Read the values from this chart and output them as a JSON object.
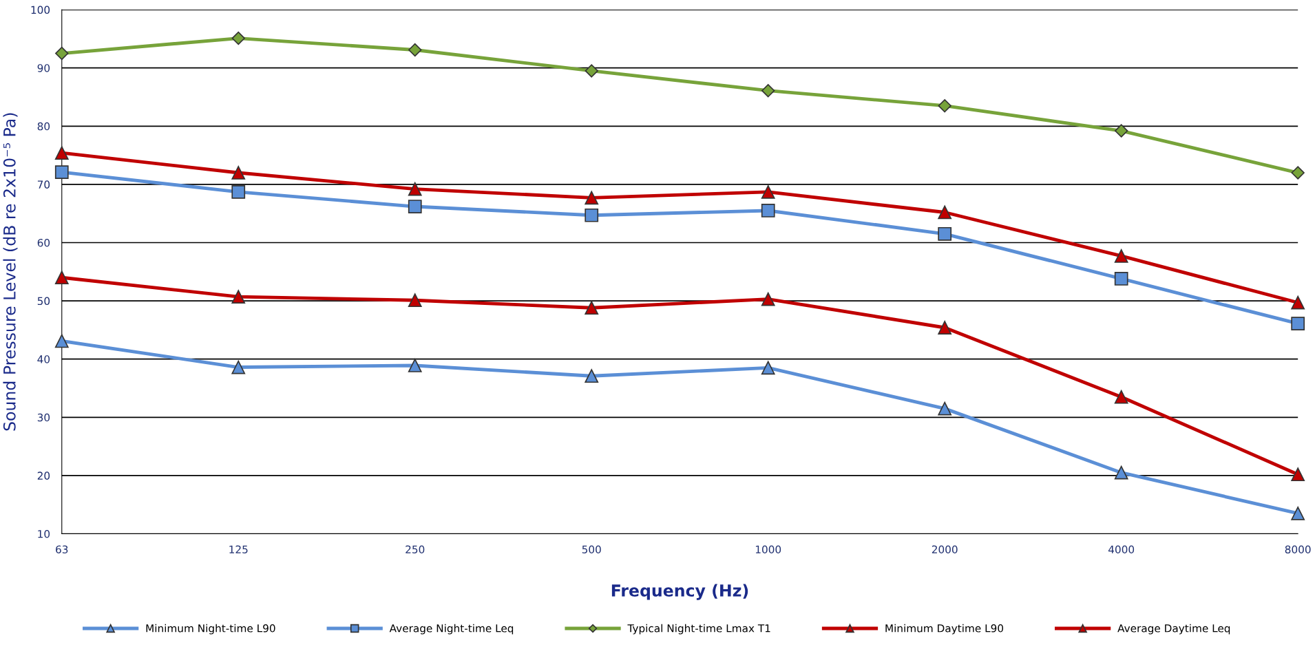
{
  "chart_data": {
    "type": "line",
    "xlabel": "Frequency (Hz)",
    "ylabel": "Sound Pressure Level (dB re 2x10⁻⁵ Pa)",
    "categories": [
      "63",
      "125",
      "250",
      "500",
      "1000",
      "2000",
      "4000",
      "8000"
    ],
    "ylim": [
      10,
      100
    ],
    "yticks": [
      10,
      20,
      30,
      40,
      50,
      60,
      70,
      80,
      90,
      100
    ],
    "grid": "y",
    "legend": "bottom",
    "line_style": "solid",
    "series": [
      {
        "name": "Minimum Night-time L90",
        "color": "#5b8fd6",
        "marker": "triangle",
        "values": [
          43.1,
          38.6,
          38.9,
          37.1,
          38.5,
          31.5,
          20.5,
          13.5
        ]
      },
      {
        "name": "Average Night-time Leq",
        "color": "#5b8fd6",
        "marker": "square",
        "values": [
          72.1,
          68.7,
          66.2,
          64.7,
          65.5,
          61.5,
          53.8,
          46.1
        ]
      },
      {
        "name": "Typical Night-time Lmax T1",
        "color": "#77a33a",
        "marker": "diamond",
        "values": [
          92.5,
          95.1,
          93.1,
          89.5,
          86.1,
          83.5,
          79.2,
          72.0
        ]
      },
      {
        "name": "Minimum Daytime L90",
        "color": "#c00000",
        "marker": "triangle",
        "values": [
          54.0,
          50.7,
          50.1,
          48.8,
          50.3,
          45.4,
          33.5,
          20.2
        ]
      },
      {
        "name": "Average Daytime Leq",
        "color": "#c00000",
        "marker": "triangle",
        "values": [
          75.4,
          72.0,
          69.2,
          67.7,
          68.7,
          65.2,
          57.7,
          49.7
        ]
      }
    ]
  }
}
